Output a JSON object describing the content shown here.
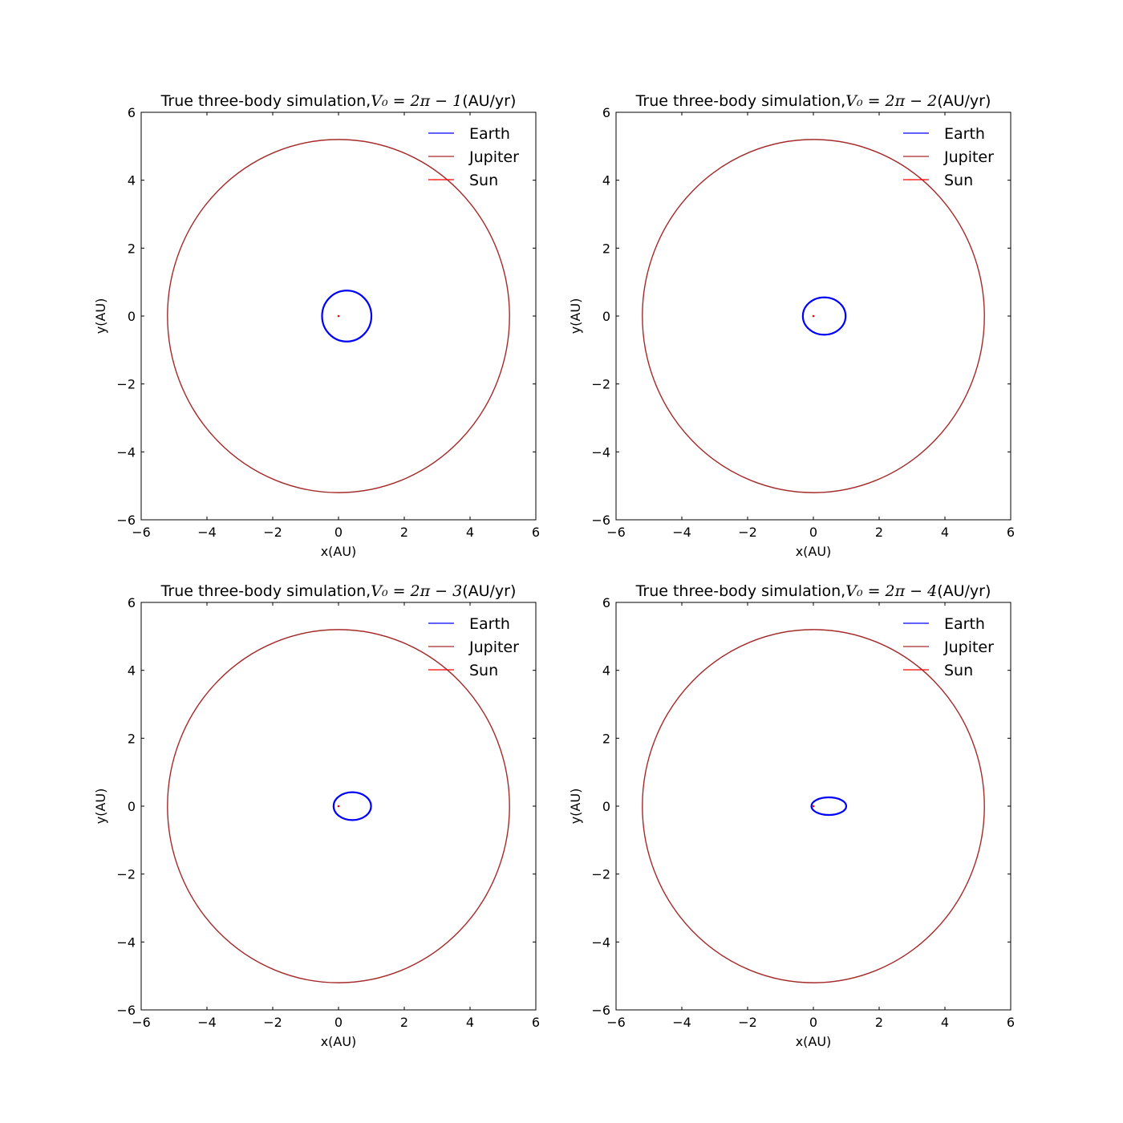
{
  "chart_data": [
    {
      "type": "line",
      "title": {
        "prefix": "True three-body simulation,",
        "math": "V₀ = 2π − 1",
        "suffix": "(AU/yr)"
      },
      "xlabel": "x(AU)",
      "ylabel": "y(AU)",
      "xlim": [
        -6,
        6
      ],
      "ylim": [
        -6,
        6
      ],
      "xticks": [
        -6,
        -4,
        -2,
        0,
        2,
        4,
        6
      ],
      "yticks": [
        -6,
        -4,
        -2,
        0,
        2,
        4,
        6
      ],
      "tick_labels": [
        "−6",
        "−4",
        "−2",
        "0",
        "2",
        "4",
        "6"
      ],
      "grid": false,
      "legend": "upper-right",
      "series": [
        {
          "name": "Earth",
          "color": "#0000ff",
          "shape": "ellipse",
          "center": [
            0.25,
            0.0
          ],
          "radii": [
            0.75,
            0.75
          ]
        },
        {
          "name": "Jupiter",
          "color": "#a52a2a",
          "shape": "ellipse",
          "center": [
            0.0,
            0.0
          ],
          "radii": [
            5.2,
            5.2
          ]
        },
        {
          "name": "Sun",
          "color": "#ff0000",
          "shape": "point",
          "center": [
            0.0,
            0.0
          ]
        }
      ]
    },
    {
      "type": "line",
      "title": {
        "prefix": "True three-body simulation,",
        "math": "V₀ = 2π − 2",
        "suffix": "(AU/yr)"
      },
      "xlabel": "x(AU)",
      "ylabel": "y(AU)",
      "xlim": [
        -6,
        6
      ],
      "ylim": [
        -6,
        6
      ],
      "xticks": [
        -6,
        -4,
        -2,
        0,
        2,
        4,
        6
      ],
      "yticks": [
        -6,
        -4,
        -2,
        0,
        2,
        4,
        6
      ],
      "tick_labels": [
        "−6",
        "−4",
        "−2",
        "0",
        "2",
        "4",
        "6"
      ],
      "grid": false,
      "legend": "upper-right",
      "series": [
        {
          "name": "Earth",
          "color": "#0000ff",
          "shape": "ellipse",
          "center": [
            0.33,
            0.0
          ],
          "radii": [
            0.65,
            0.55
          ]
        },
        {
          "name": "Jupiter",
          "color": "#a52a2a",
          "shape": "ellipse",
          "center": [
            0.0,
            0.0
          ],
          "radii": [
            5.2,
            5.2
          ]
        },
        {
          "name": "Sun",
          "color": "#ff0000",
          "shape": "point",
          "center": [
            0.0,
            0.0
          ]
        }
      ]
    },
    {
      "type": "line",
      "title": {
        "prefix": "True three-body simulation,",
        "math": "V₀ = 2π − 3",
        "suffix": "(AU/yr)"
      },
      "xlabel": "x(AU)",
      "ylabel": "y(AU)",
      "xlim": [
        -6,
        6
      ],
      "ylim": [
        -6,
        6
      ],
      "xticks": [
        -6,
        -4,
        -2,
        0,
        2,
        4,
        6
      ],
      "yticks": [
        -6,
        -4,
        -2,
        0,
        2,
        4,
        6
      ],
      "tick_labels": [
        "−6",
        "−4",
        "−2",
        "0",
        "2",
        "4",
        "6"
      ],
      "grid": false,
      "legend": "upper-right",
      "series": [
        {
          "name": "Earth",
          "color": "#0000ff",
          "shape": "ellipse",
          "center": [
            0.42,
            0.0
          ],
          "radii": [
            0.57,
            0.41
          ]
        },
        {
          "name": "Jupiter",
          "color": "#a52a2a",
          "shape": "ellipse",
          "center": [
            0.0,
            0.0
          ],
          "radii": [
            5.2,
            5.2
          ]
        },
        {
          "name": "Sun",
          "color": "#ff0000",
          "shape": "point",
          "center": [
            0.0,
            0.0
          ]
        }
      ]
    },
    {
      "type": "line",
      "title": {
        "prefix": "True three-body simulation,",
        "math": "V₀ = 2π − 4",
        "suffix": "(AU/yr)"
      },
      "xlabel": "x(AU)",
      "ylabel": "y(AU)",
      "xlim": [
        -6,
        6
      ],
      "ylim": [
        -6,
        6
      ],
      "xticks": [
        -6,
        -4,
        -2,
        0,
        2,
        4,
        6
      ],
      "yticks": [
        -6,
        -4,
        -2,
        0,
        2,
        4,
        6
      ],
      "tick_labels": [
        "−6",
        "−4",
        "−2",
        "0",
        "2",
        "4",
        "6"
      ],
      "grid": false,
      "legend": "upper-right",
      "series": [
        {
          "name": "Earth",
          "color": "#0000ff",
          "shape": "ellipse",
          "center": [
            0.47,
            0.0
          ],
          "radii": [
            0.53,
            0.26
          ]
        },
        {
          "name": "Jupiter",
          "color": "#a52a2a",
          "shape": "ellipse",
          "center": [
            0.0,
            0.0
          ],
          "radii": [
            5.2,
            5.2
          ]
        },
        {
          "name": "Sun",
          "color": "#ff0000",
          "shape": "point",
          "center": [
            0.0,
            0.0
          ]
        }
      ]
    }
  ]
}
